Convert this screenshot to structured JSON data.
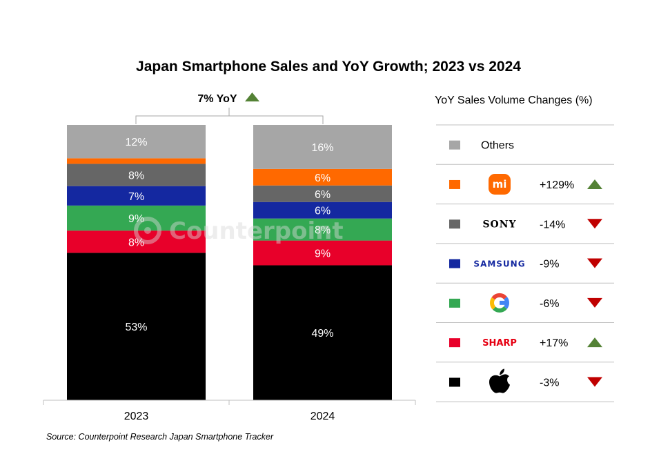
{
  "chart_data": {
    "type": "bar",
    "subtype": "stacked-percent",
    "title": "Japan Smartphone Sales and YoY Growth; 2023 vs 2024",
    "categories": [
      "2023",
      "2024"
    ],
    "series": [
      {
        "name": "Apple",
        "color": "#000000",
        "values": [
          53,
          49
        ],
        "labels": [
          "53%",
          "49%"
        ]
      },
      {
        "name": "Sharp",
        "color": "#e8002a",
        "values": [
          8,
          9
        ],
        "labels": [
          "8%",
          "9%"
        ]
      },
      {
        "name": "Google",
        "color": "#34a853",
        "values": [
          9,
          8
        ],
        "labels": [
          "9%",
          "8%"
        ]
      },
      {
        "name": "Samsung",
        "color": "#1428a0",
        "values": [
          7,
          6
        ],
        "labels": [
          "7%",
          "6%"
        ]
      },
      {
        "name": "Sony",
        "color": "#666666",
        "values": [
          8,
          6
        ],
        "labels": [
          "8%",
          "6%"
        ]
      },
      {
        "name": "Xiaomi",
        "color": "#ff6900",
        "values": [
          2,
          6
        ],
        "labels": [
          "",
          "6%"
        ]
      },
      {
        "name": "Others",
        "color": "#a6a6a6",
        "values": [
          12,
          16
        ],
        "labels": [
          "12%",
          "16%"
        ]
      }
    ],
    "total_yoy": {
      "label": "7% YoY",
      "direction": "up"
    },
    "ylim": [
      0,
      100
    ],
    "xlabel": "",
    "ylabel": "",
    "legend": {
      "title": "YoY Sales Volume Changes (%)",
      "position": "right",
      "entries": [
        {
          "brand": "Others",
          "logo": "text",
          "logo_text": "Others",
          "color": "#a6a6a6",
          "change": "",
          "direction": ""
        },
        {
          "brand": "Xiaomi",
          "logo": "xiaomi-logo",
          "logo_text": "mi",
          "color": "#ff6900",
          "change": "+129%",
          "direction": "up"
        },
        {
          "brand": "Sony",
          "logo": "sony-logo",
          "logo_text": "SONY",
          "color": "#666666",
          "change": "-14%",
          "direction": "down"
        },
        {
          "brand": "Samsung",
          "logo": "samsung-logo",
          "logo_text": "SAMSUNG",
          "color": "#1428a0",
          "change": "-9%",
          "direction": "down"
        },
        {
          "brand": "Google",
          "logo": "google-logo",
          "logo_text": "G",
          "color": "#34a853",
          "change": "-6%",
          "direction": "down"
        },
        {
          "brand": "Sharp",
          "logo": "sharp-logo",
          "logo_text": "SHARP",
          "color": "#e8002a",
          "change": "+17%",
          "direction": "up"
        },
        {
          "brand": "Apple",
          "logo": "apple-logo",
          "logo_text": "",
          "color": "#000000",
          "change": "-3%",
          "direction": "down"
        }
      ]
    },
    "source": "Source: Counterpoint Research Japan Smartphone Tracker",
    "watermark": "Counterpoint"
  },
  "colors": {
    "up_arrow": "#548235",
    "down_arrow": "#c00000",
    "divider": "#bfbfbf"
  }
}
